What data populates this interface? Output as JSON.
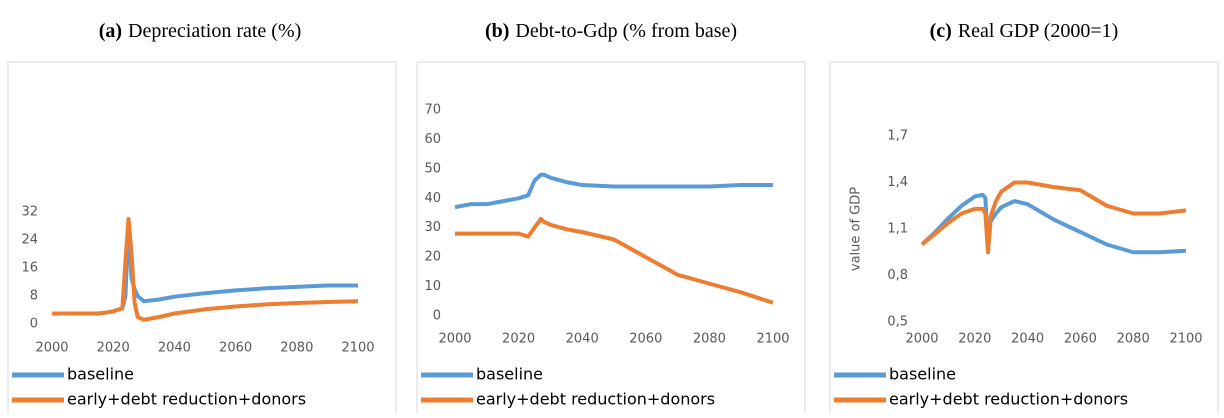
{
  "chart_data": [
    {
      "type": "line",
      "panel": "(a)",
      "title": "Depreciation rate (%)",
      "x": [
        2000,
        2005,
        2010,
        2015,
        2018,
        2020,
        2023,
        2024,
        2025,
        2026,
        2027,
        2028,
        2030,
        2035,
        2040,
        2050,
        2060,
        2070,
        2080,
        2090,
        2100
      ],
      "series": [
        {
          "name": "baseline",
          "color": "#5b9bd5",
          "values": [
            3,
            3,
            3,
            3,
            3.3,
            3.6,
            4.5,
            8,
            29,
            13,
            10,
            8,
            6.5,
            7,
            7.8,
            8.8,
            9.6,
            10.2,
            10.6,
            11,
            11
          ]
        },
        {
          "name": "early+debt reduction+donors",
          "color": "#ed7d31",
          "values": [
            3,
            3,
            3,
            3,
            3.3,
            3.6,
            4.5,
            18,
            30,
            20,
            6,
            2,
            1.2,
            2,
            3,
            4.2,
            5,
            5.6,
            6,
            6.3,
            6.5
          ]
        }
      ],
      "xlim": [
        2000,
        2100
      ],
      "xticks": [
        2000,
        2020,
        2040,
        2060,
        2080,
        2100
      ],
      "ylim": [
        0,
        32
      ],
      "yticks": [
        0,
        8,
        16,
        24,
        32
      ]
    },
    {
      "type": "line",
      "panel": "(b)",
      "title": "Debt-to-Gdp (% from base)",
      "x": [
        2000,
        2005,
        2010,
        2015,
        2020,
        2023,
        2025,
        2027,
        2028,
        2030,
        2035,
        2040,
        2050,
        2060,
        2070,
        2080,
        2090,
        2100
      ],
      "series": [
        {
          "name": "baseline",
          "color": "#5b9bd5",
          "values": [
            37,
            38,
            38,
            39,
            40,
            41,
            46,
            48,
            48,
            47,
            45.5,
            44.5,
            44,
            44,
            44,
            44,
            44.5,
            44.5
          ]
        },
        {
          "name": "early+debt reduction+donors",
          "color": "#ed7d31",
          "values": [
            28,
            28,
            28,
            28,
            28,
            27,
            30,
            33,
            32,
            31,
            29.5,
            28.5,
            26,
            20,
            14,
            11,
            8,
            4.5
          ]
        }
      ],
      "xlim": [
        2000,
        2100
      ],
      "xticks": [
        2000,
        2020,
        2040,
        2060,
        2080,
        2100
      ],
      "ylim": [
        0,
        70
      ],
      "yticks": [
        0,
        10,
        20,
        30,
        40,
        50,
        60,
        70
      ]
    },
    {
      "type": "line",
      "panel": "(c)",
      "title": "Real GDP (2000=1)",
      "y_label": "value of GDP",
      "x": [
        2000,
        2005,
        2010,
        2015,
        2020,
        2023,
        2024,
        2025,
        2026,
        2028,
        2030,
        2035,
        2040,
        2050,
        2060,
        2070,
        2080,
        2090,
        2100
      ],
      "series": [
        {
          "name": "baseline",
          "color": "#5b9bd5",
          "values": [
            1.0,
            1.08,
            1.17,
            1.25,
            1.31,
            1.32,
            1.3,
            0.96,
            1.15,
            1.2,
            1.24,
            1.28,
            1.26,
            1.16,
            1.08,
            1.0,
            0.95,
            0.95,
            0.96
          ]
        },
        {
          "name": "early+debt reduction+donors",
          "color": "#ed7d31",
          "values": [
            1.0,
            1.07,
            1.14,
            1.2,
            1.23,
            1.23,
            1.2,
            0.95,
            1.18,
            1.28,
            1.34,
            1.4,
            1.4,
            1.37,
            1.35,
            1.25,
            1.2,
            1.2,
            1.22
          ]
        }
      ],
      "xlim": [
        2000,
        2100
      ],
      "xticks": [
        2000,
        2020,
        2040,
        2060,
        2080,
        2100
      ],
      "ylim": [
        0.5,
        1.7
      ],
      "yticks": [
        {
          "value": 0.5,
          "label": "0,5"
        },
        {
          "value": 0.8,
          "label": "0,8"
        },
        {
          "value": 1.1,
          "label": "1,1"
        },
        {
          "value": 1.4,
          "label": "1,4"
        },
        {
          "value": 1.7,
          "label": "1,7"
        }
      ]
    }
  ]
}
